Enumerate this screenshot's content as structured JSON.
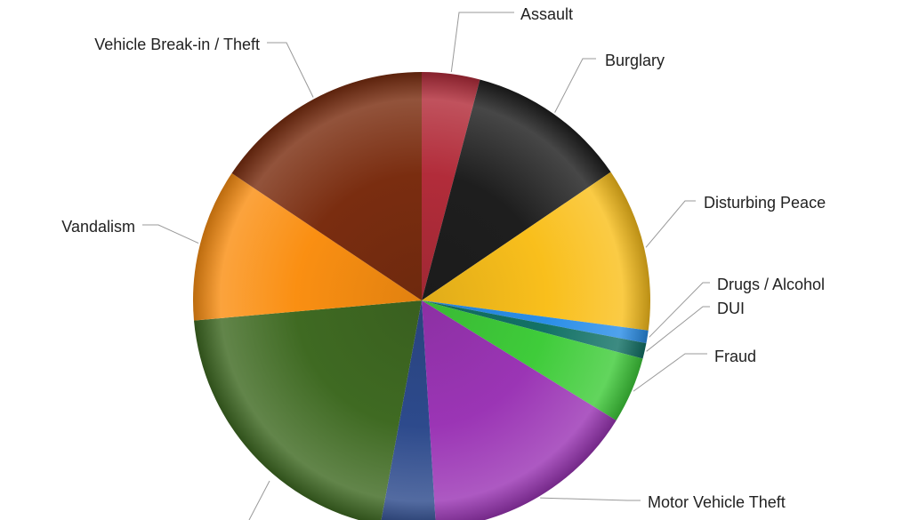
{
  "chart_data": {
    "type": "pie",
    "start_angle_deg": 0,
    "direction": "clockwise",
    "shading": "radial-gradient",
    "slices": [
      {
        "label": "Assault",
        "value": 4.1,
        "color": "#b22c3a"
      },
      {
        "label": "Burglary",
        "value": 11.4,
        "color": "#1e1e1e"
      },
      {
        "label": "Disturbing Peace",
        "value": 11.6,
        "color": "#f9bf1c"
      },
      {
        "label": "Drugs / Alcohol",
        "value": 0.9,
        "color": "#2a8ee8"
      },
      {
        "label": "DUI",
        "value": 1.1,
        "color": "#137266"
      },
      {
        "label": "Fraud",
        "value": 4.7,
        "color": "#3fcc3a"
      },
      {
        "label": "Motor Vehicle Theft",
        "value": 15.2,
        "color": "#9b35b5"
      },
      {
        "label": "",
        "value": 3.9,
        "color": "#2d4a8c"
      },
      {
        "label": "",
        "value": 20.7,
        "color": "#3f6a22"
      },
      {
        "label": "Vandalism",
        "value": 10.8,
        "color": "#fa8f12"
      },
      {
        "label": "Vehicle Break-in / Theft",
        "value": 15.6,
        "color": "#7a2d10"
      }
    ]
  }
}
